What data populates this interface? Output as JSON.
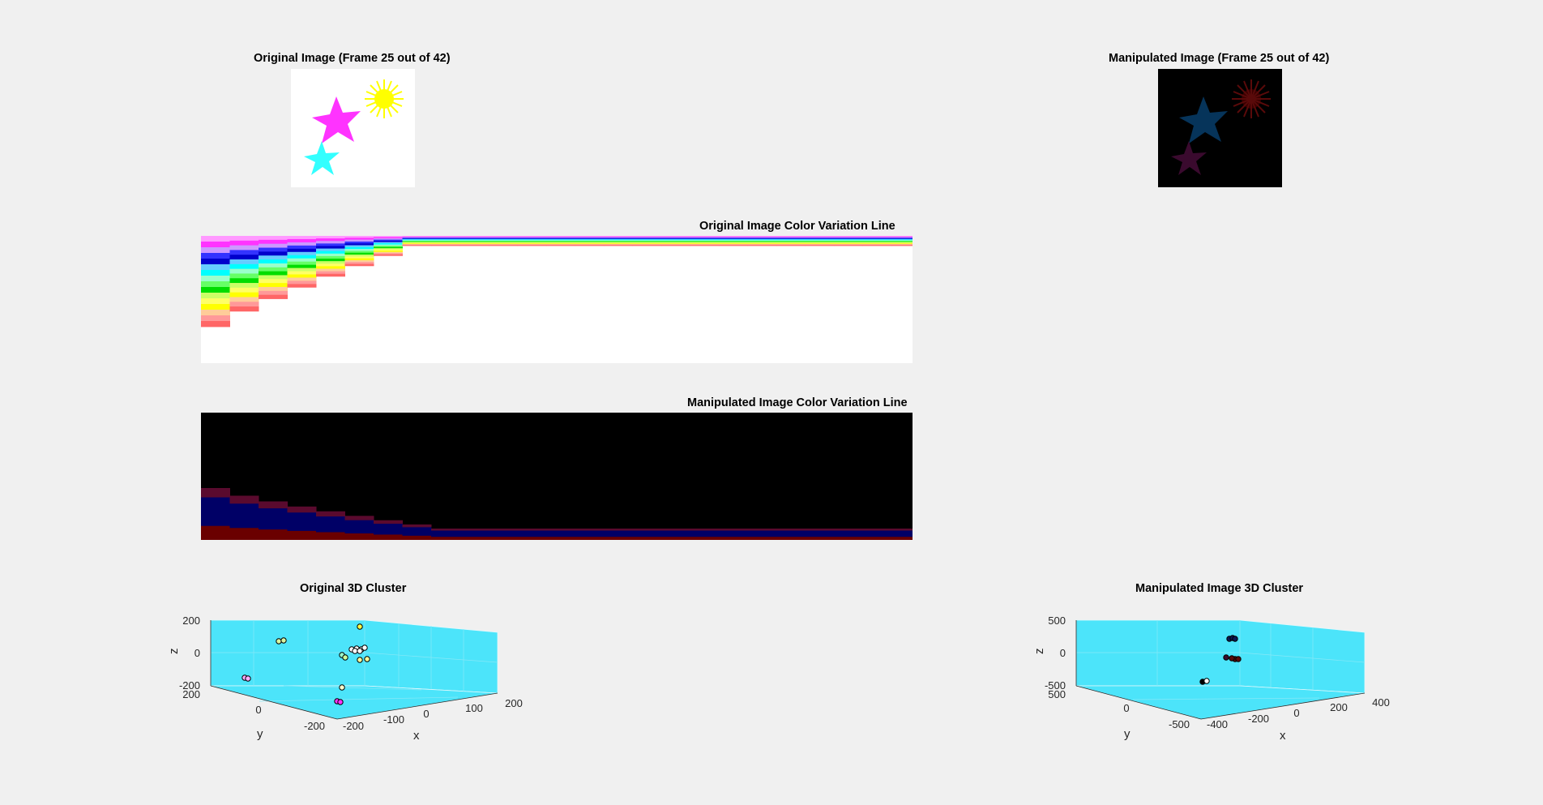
{
  "figure": {
    "original_image_title": "Original Image (Frame 25 out of 42)",
    "manipulated_image_title": "Manipulated Image (Frame 25 out of 42)",
    "original_line_title": "Original Image Color Variation Line",
    "manipulated_line_title": "Manipulated Image Color Variation Line",
    "original_cluster_title": "Original 3D Cluster",
    "manipulated_cluster_title": "Manipulated Image 3D Cluster"
  },
  "colors": {
    "background": "#f0f0f0",
    "cluster_pane": "#4ce4fa",
    "magenta": "#ff33ff",
    "yellow": "#ffff00",
    "cyan": "#33ffff"
  },
  "original_cluster_axes": {
    "zlabel": "z",
    "ylabel": "y",
    "xlabel": "x",
    "z_ticks": [
      "200",
      "0",
      "-200"
    ],
    "y_ticks": [
      "200",
      "0",
      "-200"
    ],
    "x_ticks": [
      "-200",
      "-100",
      "0",
      "100",
      "200"
    ]
  },
  "manipulated_cluster_axes": {
    "zlabel": "z",
    "ylabel": "y",
    "xlabel": "x",
    "z_ticks": [
      "500",
      "0",
      "-500"
    ],
    "y_ticks": [
      "500",
      "0",
      "-500"
    ],
    "x_ticks": [
      "-400",
      "-200",
      "0",
      "200",
      "400"
    ]
  }
}
